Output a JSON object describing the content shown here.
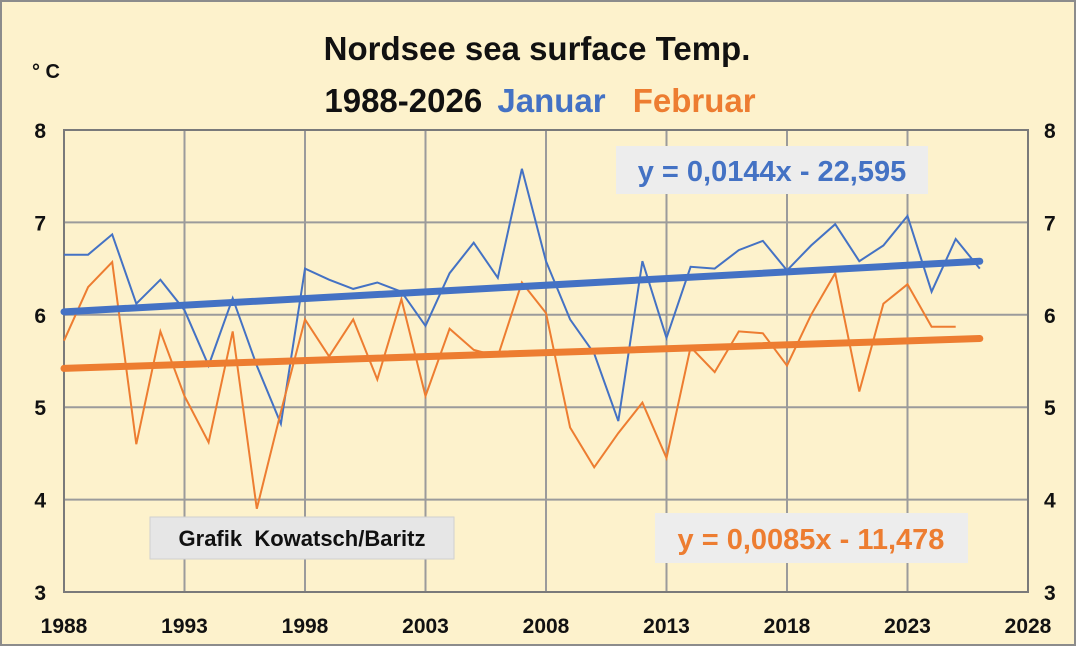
{
  "chart_data": {
    "type": "line",
    "title": "Nordsee sea surface Temp.",
    "subtitle": "1988-2026",
    "ylabel": "° C",
    "xlim": [
      1988,
      2028
    ],
    "ylim": [
      3,
      8
    ],
    "x_ticks": [
      1988,
      1993,
      1998,
      2003,
      2008,
      2013,
      2018,
      2023,
      2028
    ],
    "y_ticks": [
      3,
      4,
      5,
      6,
      7,
      8
    ],
    "grid": true,
    "legend": "title",
    "series": [
      {
        "name": "Januar",
        "color": "#4472c4",
        "x": [
          1988,
          1989,
          1990,
          1991,
          1992,
          1993,
          1994,
          1995,
          1996,
          1997,
          1998,
          1999,
          2000,
          2001,
          2002,
          2003,
          2004,
          2005,
          2006,
          2007,
          2008,
          2009,
          2010,
          2011,
          2012,
          2013,
          2014,
          2015,
          2016,
          2017,
          2018,
          2019,
          2020,
          2021,
          2022,
          2023,
          2024,
          2025,
          2026
        ],
        "values": [
          6.65,
          6.65,
          6.87,
          6.12,
          6.38,
          6.05,
          5.45,
          6.18,
          5.45,
          4.82,
          6.5,
          6.38,
          6.28,
          6.35,
          6.25,
          5.88,
          6.45,
          6.78,
          6.4,
          7.58,
          6.58,
          5.95,
          5.58,
          4.85,
          6.58,
          5.75,
          6.52,
          6.5,
          6.7,
          6.8,
          6.48,
          6.75,
          6.98,
          6.58,
          6.75,
          7.07,
          6.25,
          6.82,
          6.5
        ],
        "trend": {
          "label": "y = 0,0144x - 22,595",
          "slope": 0.0144,
          "intercept": -22.595,
          "color": "#4472c4"
        }
      },
      {
        "name": "Februar",
        "color": "#ed7d31",
        "x": [
          1988,
          1989,
          1990,
          1991,
          1992,
          1993,
          1994,
          1995,
          1996,
          1997,
          1998,
          1999,
          2000,
          2001,
          2002,
          2003,
          2004,
          2005,
          2006,
          2007,
          2008,
          2009,
          2010,
          2011,
          2012,
          2013,
          2014,
          2015,
          2016,
          2017,
          2018,
          2019,
          2020,
          2021,
          2022,
          2023,
          2024,
          2025
        ],
        "values": [
          5.72,
          6.3,
          6.57,
          4.6,
          5.82,
          5.12,
          4.62,
          5.82,
          3.9,
          4.95,
          5.95,
          5.55,
          5.95,
          5.3,
          6.17,
          5.12,
          5.85,
          5.62,
          5.55,
          6.35,
          6.02,
          4.78,
          4.35,
          4.72,
          5.05,
          4.45,
          5.65,
          5.38,
          5.82,
          5.8,
          5.45,
          6.0,
          6.45,
          5.17,
          6.12,
          6.33,
          5.87,
          5.87
        ],
        "trend": {
          "label": "y = 0,0085x - 11,478",
          "slope": 0.0085,
          "intercept": -11.478,
          "color": "#ed7d31"
        }
      }
    ],
    "credit": "Grafik  Kowatsch/Baritz"
  },
  "colors": {
    "background": "#fdf2cc",
    "grid": "#9b9b9b",
    "januar": "#4472c4",
    "februar": "#ed7d31"
  }
}
